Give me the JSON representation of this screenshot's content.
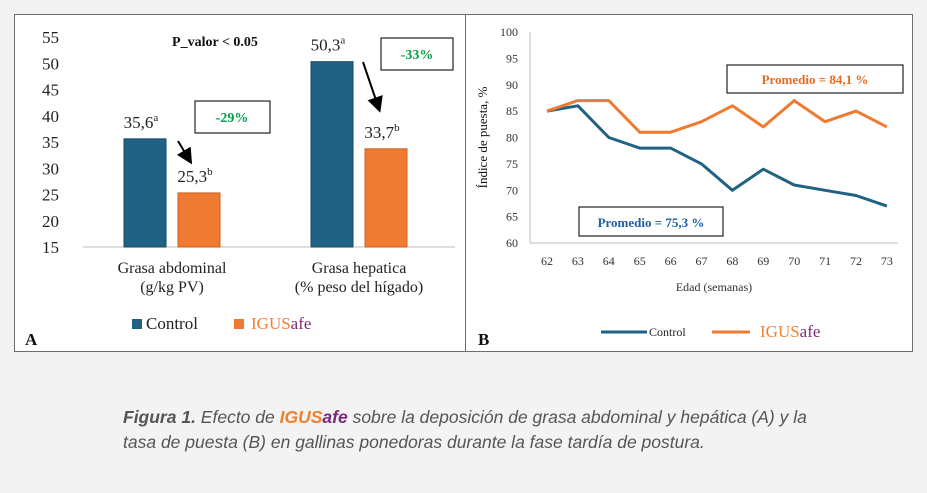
{
  "colors": {
    "control": "#1f6283",
    "igusafe": "#ee7b31",
    "brand_orange": "#f07f2f",
    "brand_purple": "#7b2a7a",
    "pct_green": "#00a046",
    "avg_blue": "#1f5fa6",
    "avg_orange": "#e86b1e"
  },
  "panel_a": {
    "letter": "A",
    "p_value": "P_valor < 0.05",
    "legend": {
      "control": "Control",
      "igus_prefix": "IGUS",
      "igus_suffix": "afe"
    }
  },
  "panel_b": {
    "letter": "B",
    "legend": {
      "control": "Control",
      "igus_prefix": "IGUS",
      "igus_suffix": "afe"
    }
  },
  "caption": {
    "fig_label": "Figura 1.",
    "text_before": " Efecto de ",
    "brand_igus": "IGUS",
    "brand_afe": "afe",
    "text_after": " sobre la deposición de grasa abdominal y hepática (A) y la tasa de puesta (B) en gallinas ponedoras durante la fase tardía de postura."
  },
  "chart_data": [
    {
      "type": "bar",
      "ylim": [
        15,
        55
      ],
      "yticks": [
        15,
        20,
        25,
        30,
        35,
        40,
        45,
        50,
        55
      ],
      "categories": [
        "Grasa abdominal\n(g/kg PV)",
        "Grasa hepatica\n(% peso del hígado)"
      ],
      "series": [
        {
          "name": "Control",
          "values": [
            35.6,
            50.3
          ],
          "labels": [
            "35,6",
            "50,3"
          ],
          "sup": [
            "a",
            "a"
          ]
        },
        {
          "name": "IGUSafe",
          "values": [
            25.3,
            33.7
          ],
          "labels": [
            "25,3",
            "33,7"
          ],
          "sup": [
            "b",
            "b"
          ]
        }
      ],
      "annotations": [
        {
          "category": 0,
          "text": "-29%"
        },
        {
          "category": 1,
          "text": "-33%"
        }
      ]
    },
    {
      "type": "line",
      "xlabel": "Edad (semanas)",
      "ylabel": "Índice de puesta, %",
      "ylim": [
        60,
        100
      ],
      "yticks": [
        60,
        65,
        70,
        75,
        80,
        85,
        90,
        95,
        100
      ],
      "x": [
        62,
        63,
        64,
        65,
        66,
        67,
        68,
        69,
        70,
        71,
        72,
        73
      ],
      "series": [
        {
          "name": "Control",
          "values": [
            85,
            86,
            80,
            78,
            78,
            75,
            70,
            74,
            71,
            70,
            69,
            67
          ]
        },
        {
          "name": "IGUSafe",
          "values": [
            85,
            87,
            87,
            81,
            81,
            83,
            86,
            82,
            87,
            83,
            85,
            82
          ]
        }
      ],
      "annotations": [
        {
          "series": "IGUSafe",
          "text": "Promedio =  84,1 %"
        },
        {
          "series": "Control",
          "text": "Promedio =  75,3 %"
        }
      ]
    }
  ]
}
